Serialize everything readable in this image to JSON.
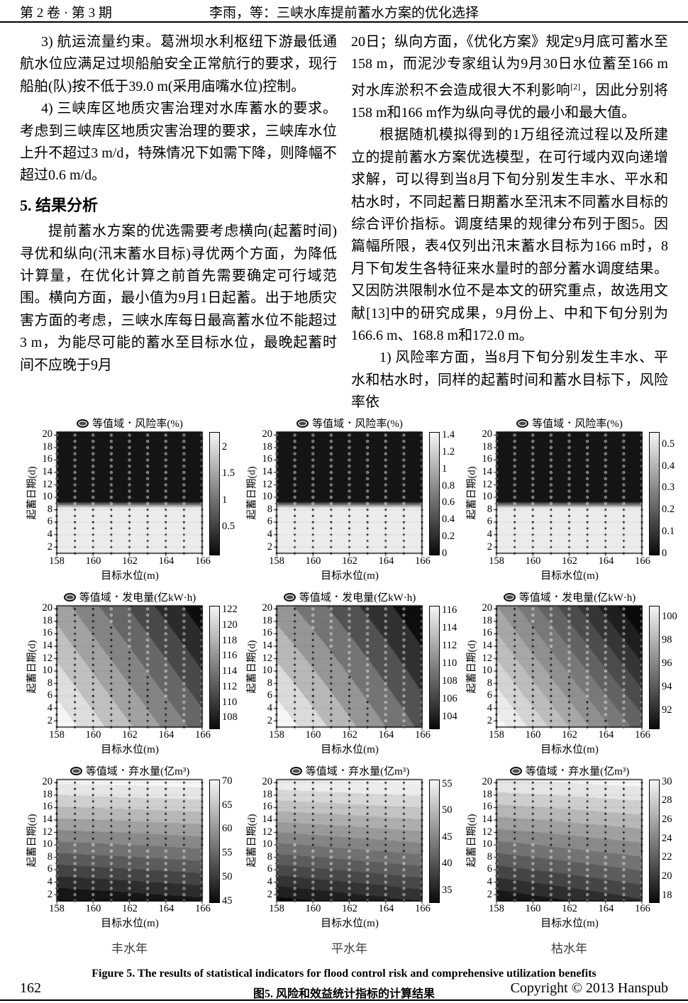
{
  "header": {
    "issue": "第 2 卷 · 第 3 期",
    "running_title": "李雨，等：三峡水库提前蓄水方案的优化选择"
  },
  "article": {
    "left_column": [
      {
        "style": "item",
        "parts": [
          {
            "t": "3)  航运流量约束。葛洲坝水利枢纽下游最低通航水位应满足过坝船舶安全正常航行的要求，现行船舶(队)按不低于39.0 m(采用庙嘴水位)控制。"
          }
        ]
      },
      {
        "style": "item",
        "parts": [
          {
            "t": "4)  三峡库区地质灾害治理对水库蓄水的要求。考虑到三峡库区地质灾害治理的要求，三峡库水位上升不超过3 m/d，特殊情况下如需下降，则降幅不超过0.6 m/d。"
          }
        ]
      },
      {
        "heading": "5.  结果分析"
      },
      {
        "style": "para",
        "parts": [
          {
            "t": "提前蓄水方案的优选需要考虑横向(起蓄时间)寻优和纵向(汛末蓄水目标)寻优两个方面，为降低计算量，在优化计算之前首先需要确定可行域范围。横向方面，最小值为9月1日起蓄。出于地质灾害方面的考虑，三峡水库每日最高蓄水位不能超过3 m，为能尽可能的蓄水至目标水位，最晚起蓄时间不应晚于9月"
          }
        ]
      }
    ],
    "right_column": [
      {
        "style": "cont",
        "parts": [
          {
            "t": "20日；纵向方面，《优化方案》规定9月底可蓄水至158 m，而泥沙专家组认为9月30日水位蓄至166 m对水库淤积不会造成很大不利影响"
          },
          {
            "sup": "[2]"
          },
          {
            "t": "，因此分别将158  m和166 m作为纵向寻优的最小和最大值。"
          }
        ]
      },
      {
        "style": "para",
        "parts": [
          {
            "t": "根据随机模拟得到的1万组径流过程以及所建立的提前蓄水方案优选模型，在可行域内双向递增求解，可以得到当8月下旬分别发生丰水、平水和枯水时，不同起蓄日期蓄水至汛末不同蓄水目标的综合评价指标。调度结果的规律分布列于图5。因篇幅所限，表4仅列出汛末蓄水目标为166 m时，8月下旬发生各特征来水量时的部分蓄水调度结果。又因防洪限制水位不是本文的研究重点，故选用文献[13]中的研究成果，9月份上、中和下旬分别为166.6 m、168.8 m和172.0 m。"
          }
        ]
      },
      {
        "style": "para",
        "parts": [
          {
            "t": "1)  风险率方面，当8月下旬分别发生丰水、平水和枯水时，同样的起蓄时间和蓄水目标下，风险率依"
          }
        ]
      }
    ]
  },
  "chart_data": {
    "shared": {
      "type": "contour",
      "legend_label": "等值域",
      "x_label": "目标水位(m)",
      "y_label": "起蓄日期(d)",
      "x_ticks": [
        158,
        160,
        162,
        164,
        166
      ],
      "y_ticks": [
        2,
        4,
        6,
        8,
        10,
        12,
        14,
        16,
        18,
        20
      ],
      "x_range": [
        158,
        166
      ],
      "y_range": [
        1,
        20.5
      ],
      "grid": true,
      "colormap": "gray (dark = low, light = high)"
    },
    "charts": [
      {
        "metric": "风险率(%)",
        "year_type": "丰水年",
        "colorbar_ticks": [
          0.5,
          1,
          1.5,
          2
        ],
        "colorbar_range": [
          0,
          2.3
        ],
        "field": {
          "kind": "riskstep",
          "y0": 8.35,
          "y1": 9.4,
          "vmax": 2.2,
          "levels": 12
        },
        "summary": "风险率约2.2%当起蓄日期≤8日，骤降至0当起蓄日期≥9日"
      },
      {
        "metric": "风险率(%)",
        "year_type": "平水年",
        "colorbar_ticks": [
          0,
          0.2,
          0.4,
          0.6,
          0.8,
          1,
          1.2,
          1.4
        ],
        "colorbar_range": [
          0,
          1.45
        ],
        "field": {
          "kind": "riskstep",
          "y0": 8.35,
          "y1": 9.4,
          "vmax": 1.4,
          "levels": 12
        },
        "summary": "风险率约1.4%当起蓄日期≤8日，骤降至0当起蓄日期≥9日"
      },
      {
        "metric": "风险率(%)",
        "year_type": "枯水年",
        "colorbar_ticks": [
          0,
          0.1,
          0.2,
          0.3,
          0.4,
          0.5
        ],
        "colorbar_range": [
          0,
          0.56
        ],
        "field": {
          "kind": "riskstep",
          "y0": 8.35,
          "y1": 9.4,
          "vmax": 0.53,
          "levels": 12
        },
        "summary": "风险率约0.5%当起蓄日期≤8日，骤降至0当起蓄日期≥9日"
      },
      {
        "metric": "发电量(亿kW·h)",
        "year_type": "丰水年",
        "colorbar_ticks": [
          108,
          110,
          112,
          114,
          116,
          118,
          120,
          122
        ],
        "colorbar_range": [
          106.8,
          122.6
        ],
        "field": {
          "kind": "bilinear",
          "v00": 123.5,
          "v10": 113,
          "v01": 117,
          "v11": 106.6,
          "step": 2
        },
        "summary": "发电量最高约122于(158 m, 2 d)，最低约108于(166 m, 20 d)"
      },
      {
        "metric": "发电量(亿kW·h)",
        "year_type": "平水年",
        "colorbar_ticks": [
          104,
          106,
          108,
          110,
          112,
          114,
          116
        ],
        "colorbar_range": [
          102.8,
          116.6
        ],
        "field": {
          "kind": "bilinear",
          "v00": 117.5,
          "v10": 107.5,
          "v01": 111,
          "v11": 102.2,
          "step": 2
        },
        "summary": "发电量最高约116于(158 m, 2 d)，最低约104于(166 m, 20 d)"
      },
      {
        "metric": "发电量(亿kW·h)",
        "year_type": "枯水年",
        "colorbar_ticks": [
          92,
          94,
          96,
          98,
          100
        ],
        "colorbar_range": [
          90.6,
          101
        ],
        "field": {
          "kind": "bilinear",
          "v00": 101.5,
          "v10": 94.5,
          "v01": 97,
          "v11": 89.8,
          "step": 1
        },
        "summary": "发电量最高约100于(158 m, 2 d)，最低约92于(165 m, 14 d)附近"
      },
      {
        "metric": "弃水量(亿m³)",
        "year_type": "丰水年",
        "colorbar_ticks": [
          45,
          50,
          55,
          60,
          65,
          70
        ],
        "colorbar_range": [
          45,
          70.5
        ],
        "field": {
          "kind": "bilinear",
          "v00": 44.6,
          "v10": 46.8,
          "v01": 70.8,
          "v11": 71.5,
          "step": 2.5
        },
        "summary": "弃水量由底部约45增至顶部约70，等值线近水平"
      },
      {
        "metric": "弃水量(亿m³)",
        "year_type": "平水年",
        "colorbar_ticks": [
          35,
          40,
          45,
          50,
          55
        ],
        "colorbar_range": [
          33,
          56
        ],
        "field": {
          "kind": "bilinear",
          "v00": 33.2,
          "v10": 36,
          "v01": 55.8,
          "v11": 56.8,
          "step": 2
        },
        "summary": "弃水量由底部约35增至顶部约55，等值线近水平"
      },
      {
        "metric": "弃水量(亿m³)",
        "year_type": "枯水年",
        "colorbar_ticks": [
          18,
          20,
          22,
          24,
          26,
          28,
          30
        ],
        "colorbar_range": [
          17.4,
          30.3
        ],
        "field": {
          "kind": "bilinear",
          "v00": 17.6,
          "v10": 19.8,
          "v01": 30,
          "v11": 30.6,
          "step": 1.25
        },
        "summary": "弃水量由底部约18增至顶部约30，等值线近水平"
      }
    ]
  },
  "figure": {
    "column_labels": [
      "丰水年",
      "平水年",
      "枯水年"
    ],
    "caption_en": "Figure 5. The results of statistical indicators for flood control risk and comprehensive utilization benefits",
    "caption_zh": "图5. 风险和效益统计指标的计算结果"
  },
  "footer": {
    "page_number": "162",
    "copyright": "Copyright © 2013 Hanspub"
  }
}
